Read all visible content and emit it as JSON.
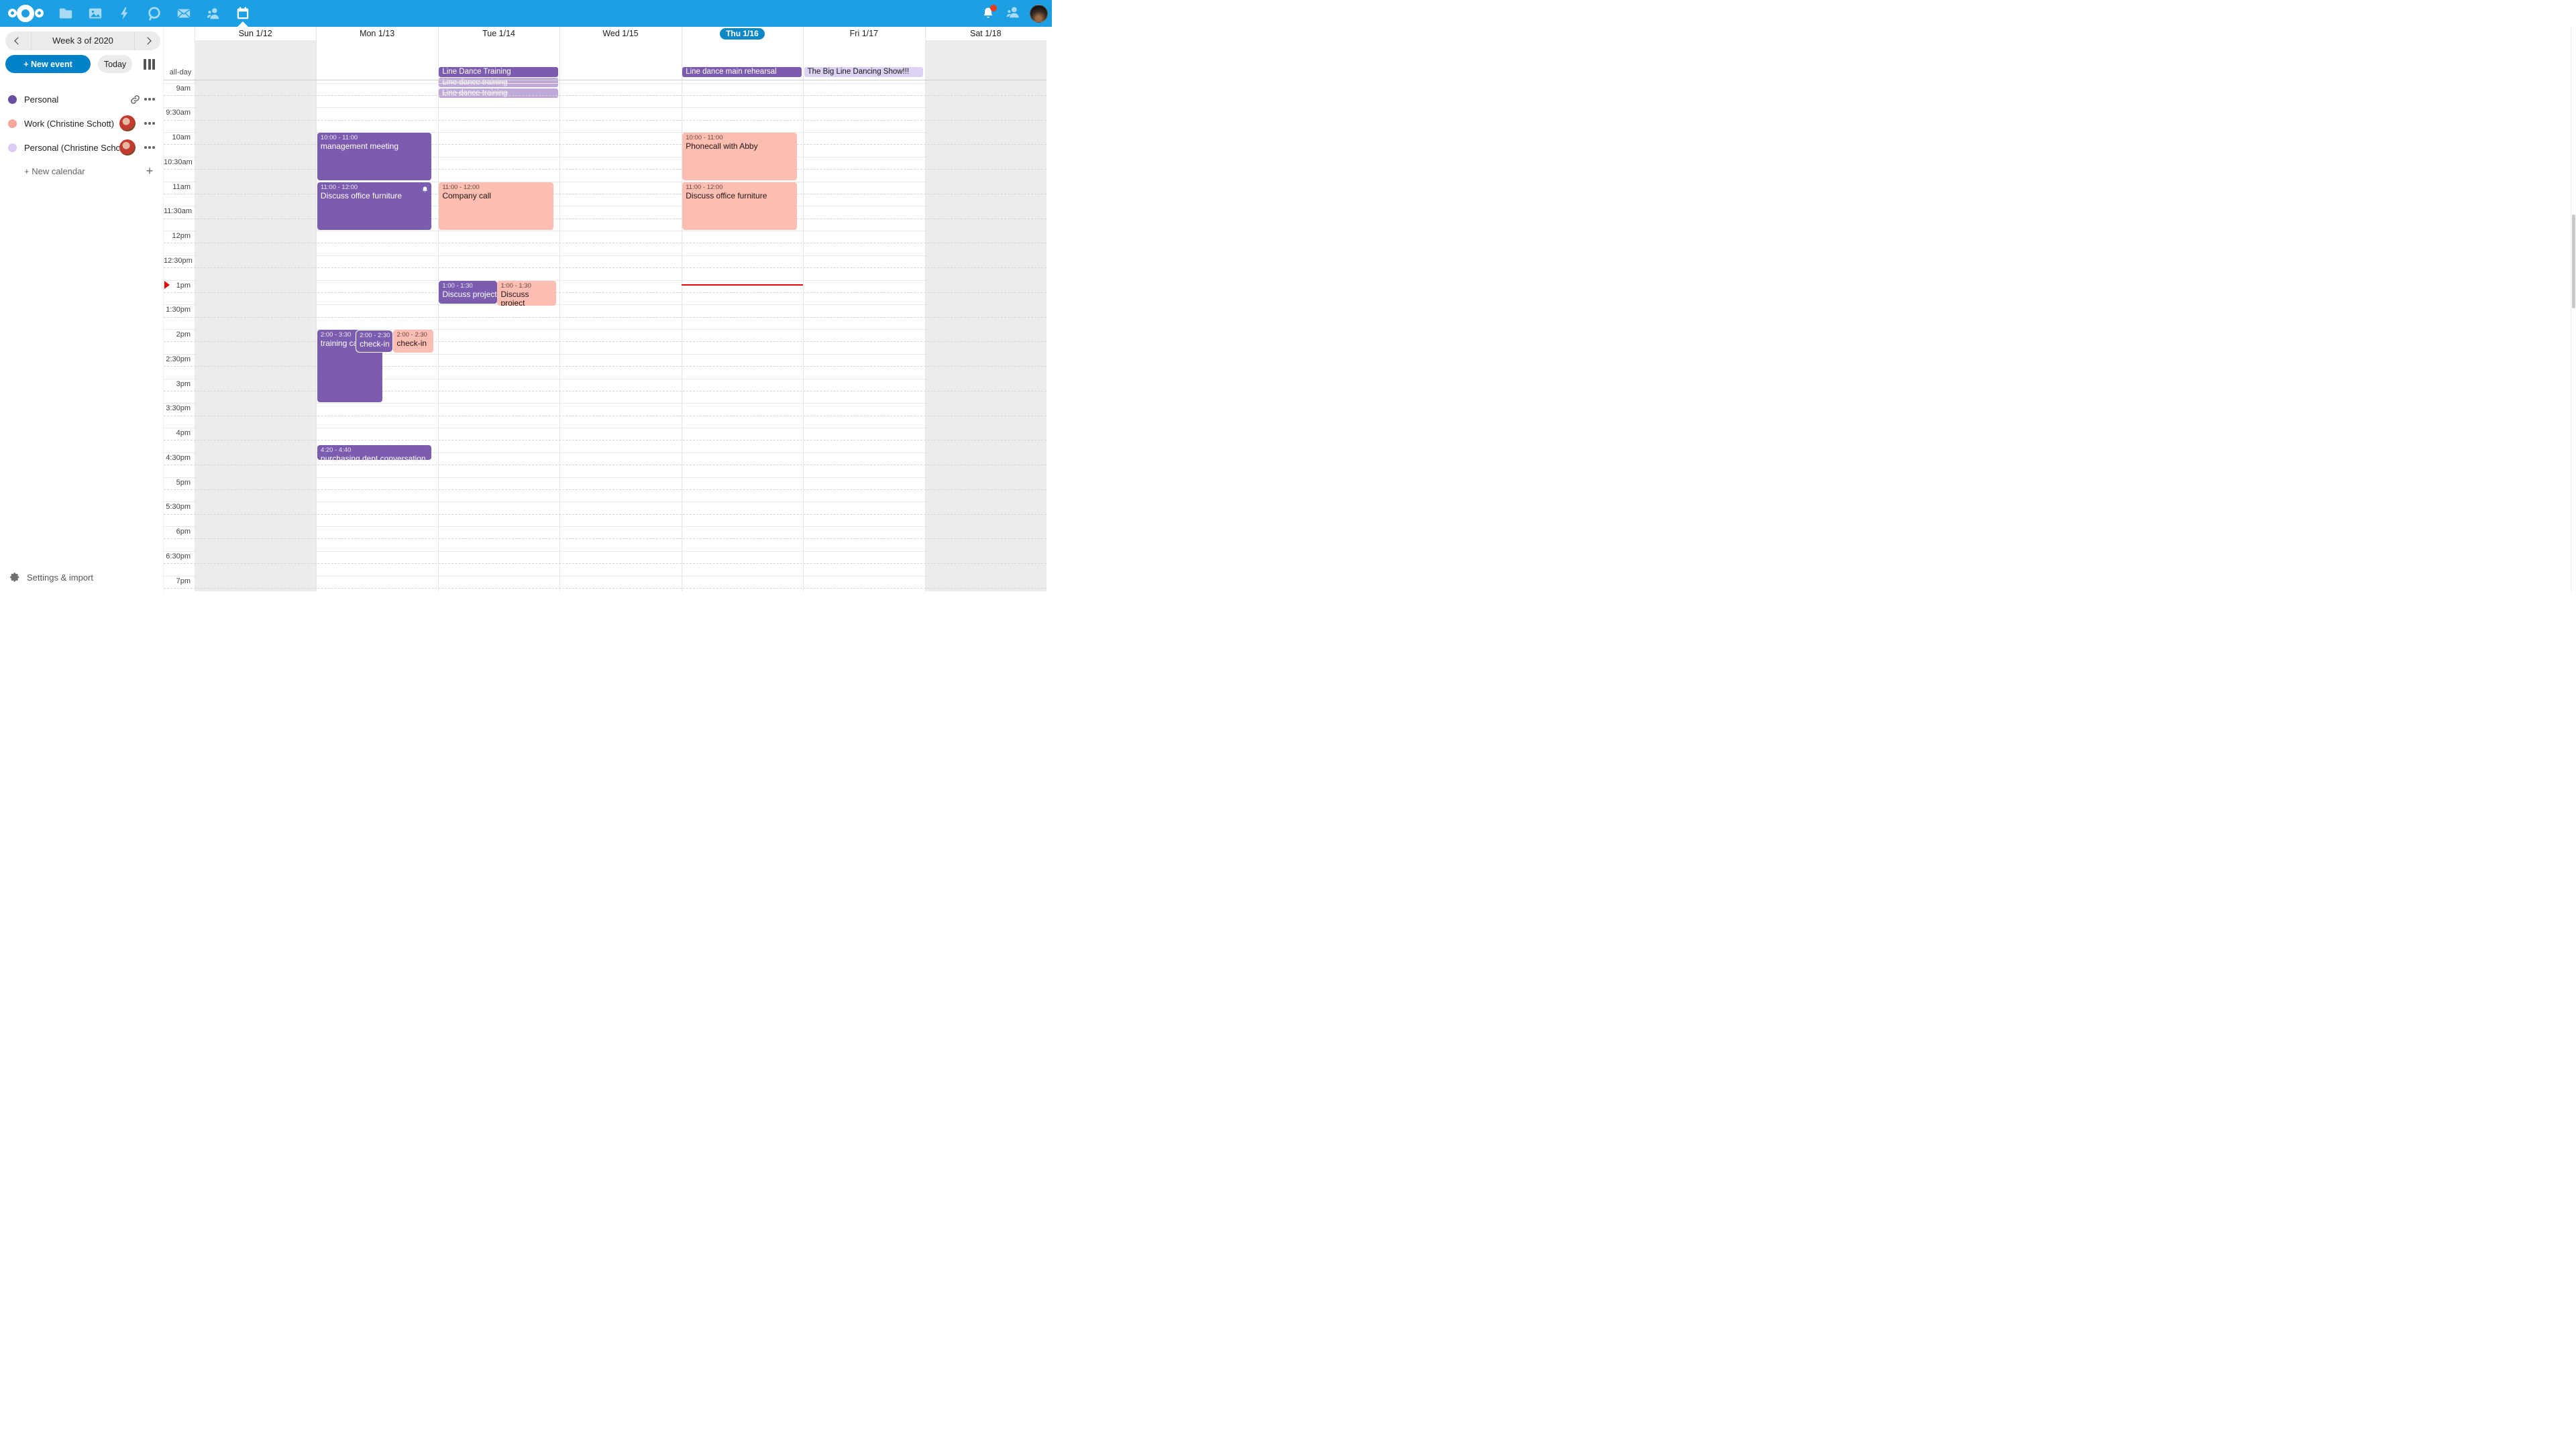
{
  "topbar": {
    "app_icons": [
      "nextcloud-logo",
      "files-icon",
      "photos-icon",
      "activity-icon",
      "talk-icon",
      "mail-icon",
      "contacts-icon",
      "calendar-icon"
    ],
    "active_app": "calendar",
    "has_notification_dot": true
  },
  "sidebar": {
    "week_label": "Week 3 of 2020",
    "new_event_label": "+ New event",
    "today_label": "Today",
    "calendars": [
      {
        "name": "Personal",
        "color": "#6a4f9e",
        "trailing": "link"
      },
      {
        "name": "Work (Christine Schott)",
        "color": "#f5a79d",
        "trailing": "avatar"
      },
      {
        "name": "Personal (Christine Scho…",
        "color": "#dccbf3",
        "trailing": "avatar"
      }
    ],
    "new_calendar_label": "+ New calendar",
    "settings_label": "Settings & import"
  },
  "calendar": {
    "all_day_label": "all-day",
    "days": [
      {
        "label": "Sun 1/12",
        "weekend": true,
        "today": false
      },
      {
        "label": "Mon 1/13",
        "weekend": false,
        "today": false
      },
      {
        "label": "Tue 1/14",
        "weekend": false,
        "today": false
      },
      {
        "label": "Wed 1/15",
        "weekend": false,
        "today": false
      },
      {
        "label": "Thu 1/16",
        "weekend": false,
        "today": true
      },
      {
        "label": "Fri 1/17",
        "weekend": false,
        "today": false
      },
      {
        "label": "Sat 1/18",
        "weekend": true,
        "today": false
      }
    ],
    "time_labels": [
      "9am",
      "9:30am",
      "10am",
      "10:30am",
      "11am",
      "11:30am",
      "12pm",
      "12:30pm",
      "1pm",
      "1:30pm",
      "2pm",
      "2:30pm",
      "3pm",
      "3:30pm",
      "4pm",
      "4:30pm",
      "5pm",
      "5:30pm",
      "6pm",
      "6:30pm",
      "7pm"
    ],
    "all_day_events": [
      {
        "day": 2,
        "row": 0,
        "title": "Line Dance Training",
        "variant": "purple",
        "strikethrough": false
      },
      {
        "day": 2,
        "row": 1,
        "title": "Line dance training",
        "variant": "cancel",
        "strikethrough": true
      },
      {
        "day": 2,
        "row": 2,
        "title": "Line dance training",
        "variant": "cancel",
        "strikethrough": true
      },
      {
        "day": 4,
        "row": 0,
        "title": "Line dance main rehearsal",
        "variant": "purple",
        "strikethrough": false
      },
      {
        "day": 5,
        "row": 0,
        "title": "The Big Line Dancing Show!!!",
        "variant": "lavender",
        "strikethrough": false
      }
    ],
    "events": [
      {
        "day": 1,
        "start": "10:00",
        "end": "11:00",
        "time_label": "10:00 - 11:00",
        "title": "management meeting",
        "variant": "purple"
      },
      {
        "day": 1,
        "start": "11:00",
        "end": "12:00",
        "time_label": "11:00 - 12:00",
        "title": "Discuss office furniture",
        "variant": "purple",
        "bell": true
      },
      {
        "day": 1,
        "start": "14:00",
        "end": "15:30",
        "time_label": "2:00 - 3:30",
        "title": "training call",
        "variant": "purple",
        "left_pct": 0,
        "width_pct": 55
      },
      {
        "day": 1,
        "start": "14:00",
        "end": "14:30",
        "time_label": "2:00 - 2:30",
        "title": "check-in",
        "variant": "purple",
        "left_pct": 32.5,
        "width_pct": 32,
        "outlined": true
      },
      {
        "day": 1,
        "start": "14:00",
        "end": "14:30",
        "time_label": "2:00 - 2:30",
        "title": "check-in",
        "variant": "salmon",
        "left_pct": 64.5,
        "width_pct": 34
      },
      {
        "day": 1,
        "start": "16:20",
        "end": "16:40",
        "time_label": "4:20 - 4:40",
        "title": "purchasing dept conversation",
        "variant": "purple"
      },
      {
        "day": 2,
        "start": "11:00",
        "end": "12:00",
        "time_label": "11:00 - 12:00",
        "title": "Company call",
        "variant": "salmon"
      },
      {
        "day": 2,
        "start": "13:00",
        "end": "13:30",
        "time_label": "1:00 - 1:30",
        "title": "Discuss project announcement",
        "variant": "purple",
        "left_pct": 0,
        "width_pct": 49.5,
        "nowrap": true
      },
      {
        "day": 2,
        "start": "13:00",
        "end": "13:30",
        "time_label": "1:00 - 1:30",
        "title": "Discuss project announcement",
        "variant": "salmon",
        "left_pct": 49.5,
        "width_pct": 49.5,
        "min_height": 37
      },
      {
        "day": 4,
        "start": "10:00",
        "end": "11:00",
        "time_label": "10:00 - 11:00",
        "title": "Phonecall with Abby",
        "variant": "salmon"
      },
      {
        "day": 4,
        "start": "11:00",
        "end": "12:00",
        "time_label": "11:00 - 12:00",
        "title": "Discuss office furniture",
        "variant": "salmon"
      }
    ],
    "now_indicator": {
      "day": 4,
      "time": "13:05"
    }
  },
  "colors": {
    "accent": "#0082c9",
    "header_blue": "#1d9fe4",
    "event_purple": "#7b5cae",
    "event_salmon": "#fcbdb2",
    "event_cancelled": "#c0a8d8",
    "event_lavender": "#ddd2f4",
    "now_red": "#e80600",
    "today_pill": "#0e87c5"
  }
}
